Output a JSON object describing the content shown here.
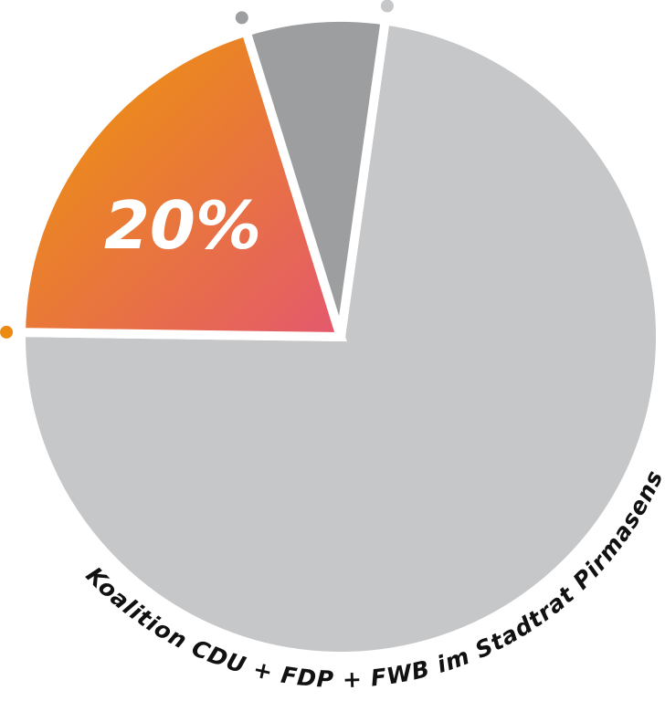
{
  "chart_data": {
    "type": "pie",
    "title": "",
    "slices": [
      {
        "label": "Koalition CDU + FDP + FWB im Stadtrat Pirmasens",
        "value": 73,
        "color": "#c6c7c9"
      },
      {
        "label": "",
        "value": 20,
        "color": "#ec8a12",
        "value_label": "20%"
      },
      {
        "label": "",
        "value": 7,
        "color": "#9d9e9f"
      }
    ],
    "caption": "Koalition CDU + FDP + FWB im Stadtrat Pirmasens"
  },
  "colors": {
    "gradient_start": "#ee9a00",
    "gradient_end": "#e4586e",
    "background": "#ffffff",
    "separator": "#ffffff"
  }
}
